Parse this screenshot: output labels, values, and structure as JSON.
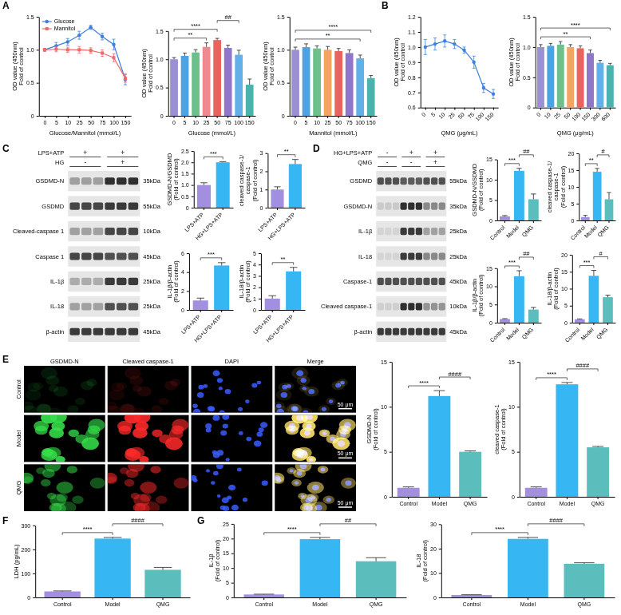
{
  "panel_labels": [
    "A",
    "B",
    "C",
    "D",
    "E",
    "F",
    "G"
  ],
  "chart_data": [
    {
      "type": "line",
      "x_label": "Glucose/Mannitol (mmol/L)",
      "y_label": [
        "OD value (450nm)",
        "Fold of control"
      ],
      "categories": [
        "0",
        "5",
        "10",
        "25",
        "50",
        "75",
        "100",
        "150"
      ],
      "series": [
        {
          "name": "Glucose",
          "color": "#3f7fe0",
          "marker": "circle",
          "values": [
            1.0,
            1.06,
            1.12,
            1.22,
            1.34,
            1.2,
            1.08,
            0.55
          ],
          "errors": [
            0.02,
            0.05,
            0.05,
            0.06,
            0.03,
            0.05,
            0.08,
            0.08
          ]
        },
        {
          "name": "Mannitol",
          "color": "#f06a6a",
          "marker": "square",
          "values": [
            1.0,
            1.01,
            1.0,
            1.0,
            0.99,
            0.95,
            0.88,
            0.57
          ],
          "errors": [
            0.02,
            0.04,
            0.04,
            0.05,
            0.04,
            0.05,
            0.06,
            0.06
          ]
        }
      ],
      "ylim": [
        0,
        1.5
      ],
      "yticks": [
        0,
        0.5,
        {
          "value": 1,
          "label": "1.0"
        },
        {
          "value": 1.5,
          "label": "1.5"
        }
      ],
      "legend": "upper left"
    },
    {
      "type": "bar",
      "x_label": "Glucose (mmol/L)",
      "y_label": [
        "OD value (450nm)",
        "Fold of control"
      ],
      "categories": [
        "0",
        "5",
        "10",
        "25",
        "50",
        "75",
        "100",
        "150"
      ],
      "values": [
        1.0,
        1.06,
        1.12,
        1.22,
        1.34,
        1.2,
        1.08,
        0.55
      ],
      "errors": [
        0.03,
        0.05,
        0.05,
        0.07,
        0.03,
        0.05,
        0.08,
        0.1
      ],
      "colors": [
        "#9b8fd6",
        "#4ba3e3",
        "#6cc08b",
        "#ee8a8f",
        "#e8645f",
        "#8e76c8",
        "#61b0e8",
        "#4ab3b0"
      ],
      "ylim": [
        0,
        1.5
      ],
      "yticks": [
        0,
        0.5,
        {
          "value": 1,
          "label": "1.0"
        },
        {
          "value": 1.5,
          "label": "1.5"
        }
      ],
      "annotations": [
        {
          "from": "0",
          "to": "25",
          "label": "**"
        },
        {
          "from": "0",
          "to": "50",
          "label": "****"
        },
        {
          "from": "50",
          "to": "100",
          "label": "##"
        }
      ]
    },
    {
      "type": "bar",
      "x_label": "Mannitol (mmol/L)",
      "y_label": [
        "OD value (450nm)",
        "Fold of control"
      ],
      "categories": [
        "0",
        "5",
        "10",
        "25",
        "50",
        "75",
        "100",
        "150"
      ],
      "values": [
        1.0,
        1.04,
        1.02,
        1.0,
        0.98,
        0.95,
        0.87,
        0.57
      ],
      "errors": [
        0.04,
        0.05,
        0.04,
        0.05,
        0.04,
        0.05,
        0.05,
        0.04
      ],
      "colors": [
        "#9b8fd6",
        "#4ba3e3",
        "#6cc08b",
        "#f4a460",
        "#e8645f",
        "#8e76c8",
        "#61b0e8",
        "#4ab3b0"
      ],
      "ylim": [
        0,
        1.5
      ],
      "yticks": [
        0,
        0.5,
        {
          "value": 1,
          "label": "1.0"
        },
        {
          "value": 1.5,
          "label": "1.5"
        }
      ],
      "annotations": [
        {
          "from": "0",
          "to": "100",
          "label": "**"
        },
        {
          "from": "0",
          "to": "150",
          "label": "****"
        }
      ]
    },
    {
      "type": "line",
      "x_label": "QMG (μg/mL)",
      "y_label": [
        "OD value (450nm)",
        "Fold of control"
      ],
      "categories": [
        "0",
        "5",
        "10",
        "25",
        "50",
        "75",
        "100",
        "150"
      ],
      "values": [
        1.0,
        1.02,
        1.04,
        1.02,
        0.98,
        0.9,
        0.73,
        0.69
      ],
      "errors": [
        0.05,
        0.04,
        0.04,
        0.03,
        0.02,
        0.04,
        0.03,
        0.03
      ],
      "color": "#3f7fe0",
      "marker": "circle",
      "ylim": [
        0.6,
        1.2
      ],
      "yticks": [
        0.6,
        0.7,
        0.8,
        0.9,
        {
          "value": 1,
          "label": "1.0"
        },
        1.1,
        1.2
      ]
    },
    {
      "type": "bar",
      "x_label": "QMG (μg/mL)",
      "y_label": [
        "OD value (450nm)",
        "Fold of control"
      ],
      "categories": [
        "0",
        "10",
        "25",
        "50",
        "100",
        "150",
        "300",
        "600"
      ],
      "values": [
        1.0,
        1.02,
        1.04,
        1.0,
        0.98,
        0.9,
        0.74,
        0.7
      ],
      "errors": [
        0.04,
        0.04,
        0.05,
        0.04,
        0.04,
        0.05,
        0.04,
        0.03
      ],
      "colors": [
        "#9b8fd6",
        "#4ba3e3",
        "#6cc08b",
        "#f4a460",
        "#e8645f",
        "#8e76c8",
        "#61b0e8",
        "#4ab3b0"
      ],
      "ylim": [
        0,
        1.5
      ],
      "yticks": [
        0,
        0.5,
        {
          "value": 1,
          "label": "1.0"
        },
        {
          "value": 1.5,
          "label": "1.5"
        }
      ],
      "annotations": [
        {
          "from": "0",
          "to": "150",
          "label": "**"
        },
        {
          "from": "0",
          "to": "600",
          "label": "****"
        }
      ]
    },
    {
      "type": "bar",
      "y_label": [
        "GSDMD-N/GSDMD",
        "(Fold of control)"
      ],
      "categories": [
        "LPS+ATP",
        "HG+LPS+ATP"
      ],
      "values": [
        1.0,
        2.0
      ],
      "errors": [
        0.1,
        0.03
      ],
      "colors": [
        "#a28fe0",
        "#36b6f2"
      ],
      "ylim": [
        0,
        2.5
      ],
      "yticks": [
        0,
        0.5,
        {
          "value": 1,
          "label": "1.0"
        },
        {
          "value": 1.5,
          "label": "1.5"
        },
        {
          "value": 2,
          "label": "2.0"
        },
        {
          "value": 2.5,
          "label": "2.5"
        }
      ],
      "annotations": [
        {
          "from": "LPS+ATP",
          "to": "HG+LPS+ATP",
          "label": "***"
        }
      ]
    },
    {
      "type": "bar",
      "y_label": [
        "cleaved caspase-1/caspase-1",
        "(Fold of control)"
      ],
      "categories": [
        "LPS+ATP",
        "HG+LPS+ATP"
      ],
      "values": [
        1.0,
        2.4
      ],
      "errors": [
        0.15,
        0.25
      ],
      "colors": [
        "#a28fe0",
        "#36b6f2"
      ],
      "ylim": [
        0,
        3
      ],
      "yticks": [
        0,
        1,
        2,
        3
      ],
      "annotations": [
        {
          "from": "LPS+ATP",
          "to": "HG+LPS+ATP",
          "label": "**"
        }
      ]
    },
    {
      "type": "bar",
      "y_label": [
        "IL-1β/β-actin",
        "(Fold of control)"
      ],
      "categories": [
        "LPS+ATP",
        "HG+LPS+ATP"
      ],
      "values": [
        1.0,
        4.7
      ],
      "errors": [
        0.25,
        0.3
      ],
      "colors": [
        "#a28fe0",
        "#36b6f2"
      ],
      "ylim": [
        0,
        6
      ],
      "yticks": [
        0,
        2,
        4,
        6
      ],
      "annotations": [
        {
          "from": "LPS+ATP",
          "to": "HG+LPS+ATP",
          "label": "***"
        }
      ]
    },
    {
      "type": "bar",
      "y_label": [
        "IL-18/β-actin",
        "(Fold of control)"
      ],
      "categories": [
        "LPS+ATP",
        "HG+LPS+ATP"
      ],
      "values": [
        1.0,
        3.4
      ],
      "errors": [
        0.25,
        0.35
      ],
      "colors": [
        "#a28fe0",
        "#36b6f2"
      ],
      "ylim": [
        0,
        5
      ],
      "yticks": [
        0,
        1,
        2,
        3,
        4,
        5
      ],
      "annotations": [
        {
          "from": "LPS+ATP",
          "to": "HG+LPS+ATP",
          "label": "**"
        }
      ]
    },
    {
      "type": "bar",
      "y_label": [
        "GSDMD-N/GSDMD",
        "(Fold of control)"
      ],
      "categories": [
        "Control",
        "Model",
        "QMG"
      ],
      "values": [
        1.0,
        12.2,
        5.2
      ],
      "errors": [
        0.2,
        0.6,
        1.3
      ],
      "colors": [
        "#a28fe0",
        "#36b6f2",
        "#5cbdbd"
      ],
      "ylim": [
        0,
        15
      ],
      "yticks": [
        0,
        5,
        10,
        15
      ],
      "annotations": [
        {
          "from": "Control",
          "to": "Model",
          "label": "***"
        },
        {
          "from": "Model",
          "to": "QMG",
          "label": "##"
        }
      ]
    },
    {
      "type": "bar",
      "y_label": [
        "cleaved caspase-1/caspase-1",
        "(Fold of control)"
      ],
      "categories": [
        "Control",
        "Model",
        "QMG"
      ],
      "values": [
        1.0,
        14.5,
        6.3
      ],
      "errors": [
        0.5,
        1.0,
        2.0
      ],
      "colors": [
        "#a28fe0",
        "#36b6f2",
        "#5cbdbd"
      ],
      "ylim": [
        0,
        20
      ],
      "yticks": [
        0,
        5,
        10,
        15,
        20
      ],
      "annotations": [
        {
          "from": "Control",
          "to": "Model",
          "label": "**"
        },
        {
          "from": "Model",
          "to": "QMG",
          "label": "#"
        }
      ]
    },
    {
      "type": "bar",
      "y_label": [
        "IL-1β/β-actin",
        "(Fold of control)"
      ],
      "categories": [
        "Control",
        "Model",
        "QMG"
      ],
      "values": [
        1.0,
        12.8,
        3.6
      ],
      "errors": [
        0.1,
        1.5,
        0.6
      ],
      "colors": [
        "#a28fe0",
        "#36b6f2",
        "#5cbdbd"
      ],
      "ylim": [
        0,
        15
      ],
      "yticks": [
        0,
        5,
        10,
        15
      ],
      "annotations": [
        {
          "from": "Control",
          "to": "Model",
          "label": "***"
        },
        {
          "from": "Model",
          "to": "QMG",
          "label": "##"
        }
      ]
    },
    {
      "type": "bar",
      "y_label": [
        "IL-18/β-actin",
        "(Fold of control)"
      ],
      "categories": [
        "Control",
        "Model",
        "QMG"
      ],
      "values": [
        1.0,
        13.8,
        7.5
      ],
      "errors": [
        0.1,
        1.6,
        0.6
      ],
      "colors": [
        "#a28fe0",
        "#36b6f2",
        "#5cbdbd"
      ],
      "ylim": [
        0,
        20
      ],
      "yticks": [
        0,
        5,
        10,
        15,
        20
      ],
      "annotations": [
        {
          "from": "Control",
          "to": "Model",
          "label": "***"
        },
        {
          "from": "Model",
          "to": "QMG",
          "label": "#"
        }
      ]
    },
    {
      "type": "bar",
      "y_label": [
        "GSDMD-N",
        "(Fold of control)"
      ],
      "categories": [
        "Control",
        "Model",
        "QMG"
      ],
      "values": [
        1.0,
        11.2,
        5.0
      ],
      "errors": [
        0.1,
        0.6,
        0.1
      ],
      "colors": [
        "#a28fe0",
        "#36b6f2",
        "#5cbdbd"
      ],
      "ylim": [
        0,
        15
      ],
      "yticks": [
        0,
        5,
        10,
        15
      ],
      "annotations": [
        {
          "from": "Control",
          "to": "Model",
          "label": "****"
        },
        {
          "from": "Model",
          "to": "QMG",
          "label": "####"
        }
      ]
    },
    {
      "type": "bar",
      "y_label": [
        "cleaved caspase-1",
        "(Fold of control)"
      ],
      "categories": [
        "Control",
        "Model",
        "QMG"
      ],
      "values": [
        1.0,
        12.5,
        5.5
      ],
      "errors": [
        0.1,
        0.2,
        0.1
      ],
      "colors": [
        "#a28fe0",
        "#36b6f2",
        "#5cbdbd"
      ],
      "ylim": [
        0,
        15
      ],
      "yticks": [
        0,
        5,
        10,
        15
      ],
      "annotations": [
        {
          "from": "Control",
          "to": "Model",
          "label": "****"
        },
        {
          "from": "Model",
          "to": "QMG",
          "label": "####"
        }
      ]
    },
    {
      "type": "bar",
      "y_label": [
        "LDH (pg/mL)"
      ],
      "categories": [
        "Control",
        "Model",
        "QMG"
      ],
      "values": [
        25,
        245,
        115
      ],
      "errors": [
        2,
        5,
        10
      ],
      "colors": [
        "#a28fe0",
        "#36b6f2",
        "#5cbdbd"
      ],
      "ylim": [
        0,
        300
      ],
      "yticks": [
        0,
        100,
        200,
        300
      ],
      "annotations": [
        {
          "from": "Control",
          "to": "Model",
          "label": "****"
        },
        {
          "from": "Model",
          "to": "QMG",
          "label": "####"
        }
      ]
    },
    {
      "type": "bar",
      "y_label": [
        "IL-1β",
        "(Fold of control)"
      ],
      "categories": [
        "Control",
        "Model",
        "QMG"
      ],
      "values": [
        1.0,
        19.8,
        12.3
      ],
      "errors": [
        0.1,
        0.6,
        1.2
      ],
      "colors": [
        "#a28fe0",
        "#36b6f2",
        "#5cbdbd"
      ],
      "ylim": [
        0,
        25
      ],
      "yticks": [
        0,
        5,
        10,
        15,
        20,
        25
      ],
      "annotations": [
        {
          "from": "Control",
          "to": "Model",
          "label": "****"
        },
        {
          "from": "Model",
          "to": "QMG",
          "label": "##"
        }
      ]
    },
    {
      "type": "bar",
      "y_label": [
        "IL-18",
        "(Fold of control)"
      ],
      "categories": [
        "Control",
        "Model",
        "QMG"
      ],
      "values": [
        1.0,
        24.0,
        13.8
      ],
      "errors": [
        0.1,
        0.6,
        0.4
      ],
      "colors": [
        "#a28fe0",
        "#36b6f2",
        "#5cbdbd"
      ],
      "ylim": [
        0,
        30
      ],
      "yticks": [
        0,
        10,
        20,
        30
      ],
      "annotations": [
        {
          "from": "Control",
          "to": "Model",
          "label": "****"
        },
        {
          "from": "Model",
          "to": "QMG",
          "label": "####"
        }
      ]
    }
  ],
  "blots": [
    {
      "conditions": [
        {
          "label": "LPS+ATP",
          "signs": [
            "+",
            "+"
          ]
        },
        {
          "label": "HG",
          "signs": [
            "-",
            "+"
          ]
        }
      ],
      "bands": [
        {
          "protein": "GSDMD-N",
          "size": "35kDa"
        },
        {
          "protein": "GSDMD",
          "size": "55kDa"
        },
        {
          "protein": "Cleaved-caspase 1",
          "size": "10kDa"
        },
        {
          "protein": "Caspase 1",
          "size": "45kDa"
        },
        {
          "protein": "IL-1β",
          "size": "25kDa"
        },
        {
          "protein": "IL-18",
          "size": "25kDa"
        },
        {
          "protein": "β-actin",
          "size": "45kDa"
        }
      ]
    },
    {
      "conditions": [
        {
          "label": "HG+LPS+ATP",
          "signs": [
            "-",
            "+",
            "+"
          ]
        },
        {
          "label": "QMG",
          "signs": [
            "-",
            "-",
            "+"
          ]
        }
      ],
      "bands": [
        {
          "protein": "GSDMD",
          "size": "55kDa"
        },
        {
          "protein": "GSDMD-N",
          "size": "35kDa"
        },
        {
          "protein": "IL-1β",
          "size": "25kDa"
        },
        {
          "protein": "IL-18",
          "size": "25kDa"
        },
        {
          "protein": "Caspase-1",
          "size": "45kDa"
        },
        {
          "protein": "Cleaved caspase-1",
          "size": "10kDa"
        },
        {
          "protein": "β-actin",
          "size": "45kDa"
        }
      ]
    }
  ],
  "micrographs": {
    "columns": [
      "GSDMD-N",
      "Cleaved caspase-1",
      "DAPI",
      "Merge"
    ],
    "rows": [
      "Control",
      "Model",
      "QMG"
    ],
    "scale_bar": "50 μm"
  }
}
